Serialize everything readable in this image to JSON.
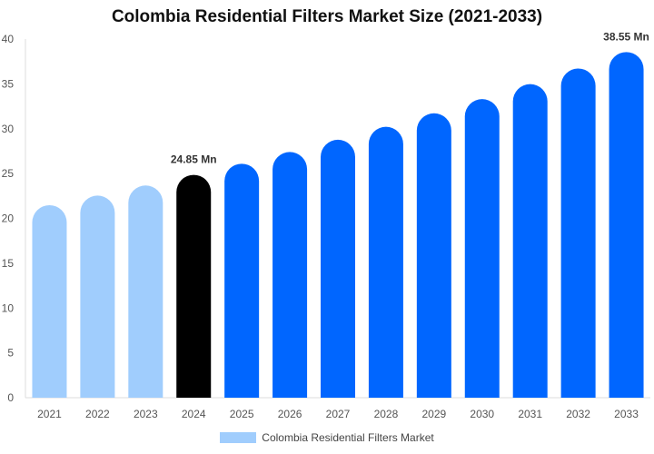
{
  "chart_data": {
    "type": "bar",
    "title": "Colombia Residential Filters Market Size (2021-2033)",
    "categories": [
      "2021",
      "2022",
      "2023",
      "2024",
      "2025",
      "2026",
      "2027",
      "2028",
      "2029",
      "2030",
      "2031",
      "2032",
      "2033"
    ],
    "series": [
      {
        "name": "Colombia Residential Filters Market",
        "values": [
          21.47,
          22.54,
          23.67,
          24.85,
          26.09,
          27.4,
          28.77,
          30.21,
          31.72,
          33.3,
          34.97,
          36.71,
          38.55
        ]
      }
    ],
    "data_labels": {
      "3": "24.85 Mn",
      "12": "38.55 Mn"
    },
    "ylim": [
      0,
      40
    ],
    "yticks": [
      0,
      5,
      10,
      15,
      20,
      25,
      30,
      35,
      40
    ],
    "xlabel": "",
    "ylabel": "",
    "grid": false,
    "legend": "bottom",
    "colors": {
      "historical": "#a0cdfd",
      "base_year": "#000000",
      "forecast": "#0066ff"
    }
  }
}
